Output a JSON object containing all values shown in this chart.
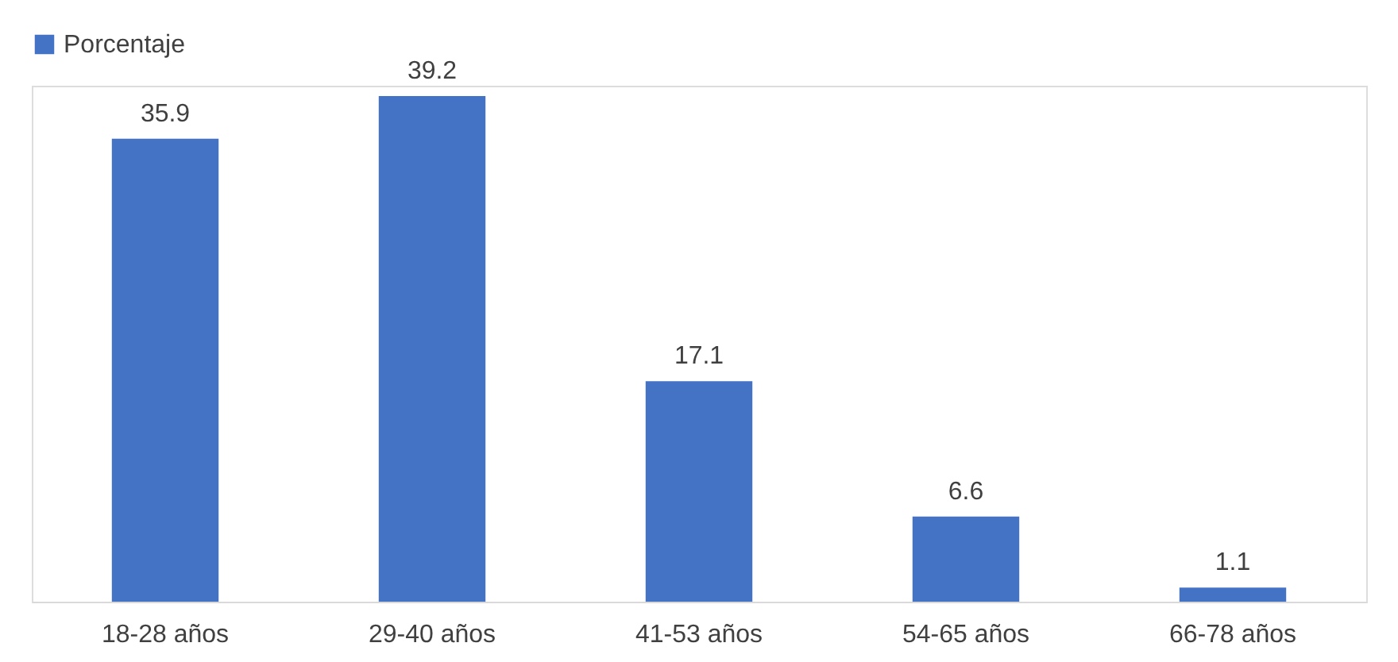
{
  "chart_data": {
    "type": "bar",
    "categories": [
      "18-28 años",
      "29-40 años",
      "41-53 años",
      "54-65 años",
      "66-78 años"
    ],
    "series": [
      {
        "name": "Porcentaje",
        "color": "#4472c4",
        "values": [
          35.9,
          39.2,
          17.1,
          6.6,
          1.1
        ]
      }
    ],
    "data_labels": true,
    "legend": "top",
    "grid": false,
    "tick_labels": "x"
  }
}
